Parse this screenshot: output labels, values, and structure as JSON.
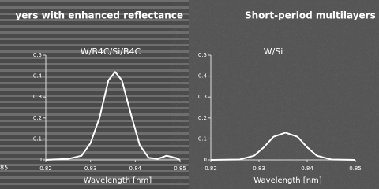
{
  "chart_data": [
    {
      "type": "line",
      "title": "yers with enhanced reflectance",
      "annotation": "W/B4C/Si/B4C",
      "x_label": "Wavelength [nm]",
      "x": [
        0.82,
        0.825,
        0.828,
        0.83,
        0.832,
        0.834,
        0.8355,
        0.837,
        0.839,
        0.841,
        0.843,
        0.845,
        0.847,
        0.849,
        0.85
      ],
      "values": [
        0.0,
        0.005,
        0.02,
        0.08,
        0.2,
        0.38,
        0.42,
        0.38,
        0.22,
        0.07,
        0.01,
        0.005,
        0.02,
        0.01,
        0.0
      ],
      "color": "#ffffff",
      "xlim": [
        0.82,
        0.85
      ],
      "xticks": [
        0.82,
        0.83,
        0.84,
        0.85
      ],
      "ylim": [
        0,
        0.5
      ],
      "yticks": [
        0,
        0.1,
        0.2,
        0.3,
        0.4,
        0.5
      ]
    },
    {
      "type": "line",
      "title": "Short-period multilayers w",
      "annotation": "W/Si",
      "x_label": "Wavelength [nm]",
      "x": [
        0.82,
        0.826,
        0.829,
        0.831,
        0.833,
        0.8355,
        0.838,
        0.84,
        0.842,
        0.845,
        0.85
      ],
      "values": [
        0.0,
        0.002,
        0.02,
        0.06,
        0.11,
        0.13,
        0.11,
        0.06,
        0.02,
        0.002,
        0.0
      ],
      "color": "#ffffff",
      "xlim": [
        0.82,
        0.85
      ],
      "xticks": [
        0.82,
        0.83,
        0.84,
        0.85
      ],
      "ylim": [
        0,
        0.5
      ],
      "yticks": [
        0,
        0.1,
        0.2,
        0.3,
        0.4,
        0.5
      ]
    }
  ],
  "fragments": [
    "85"
  ]
}
